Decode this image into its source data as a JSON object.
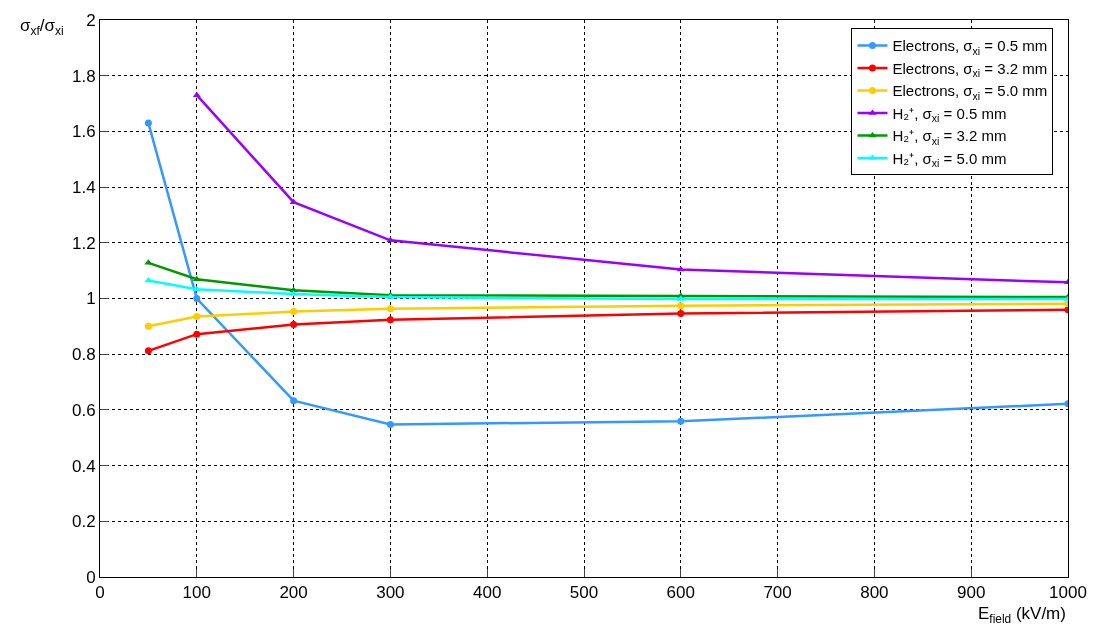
{
  "chart_data": {
    "type": "line",
    "xlabel": "E$_{field}$ (kV/m)",
    "ylabel": "σ$_{xf}$/σ$_{xi}$",
    "x": [
      50,
      100,
      200,
      300,
      600,
      1000
    ],
    "xlim": [
      0,
      1000
    ],
    "xticks": [
      0,
      100,
      200,
      300,
      400,
      500,
      600,
      700,
      800,
      900,
      1000
    ],
    "ylim": [
      0,
      2
    ],
    "yticks": [
      0,
      0.2,
      0.4,
      0.6,
      0.8,
      1,
      1.2,
      1.4,
      1.6,
      1.8,
      2
    ],
    "grid": true,
    "legend": "top right",
    "line_style": "solid",
    "series": [
      {
        "name": "Electrons, σ$_{xi}$ = 0.5 mm",
        "color": "#3399ff",
        "marker": "circle",
        "values": [
          1.63,
          1.0,
          0.633,
          0.548,
          0.559,
          0.622
        ]
      },
      {
        "name": "Electrons, σ$_{xi}$ = 3.2 mm",
        "color": "#ff0000",
        "marker": "circle",
        "values": [
          0.812,
          0.872,
          0.907,
          0.924,
          0.946,
          0.96
        ]
      },
      {
        "name": "Electrons, σ$_{xi}$ = 5.0 mm",
        "color": "#ffcc00",
        "marker": "circle",
        "values": [
          0.9,
          0.935,
          0.953,
          0.963,
          0.974,
          0.981
        ]
      },
      {
        "name": "H₂⁺, σ$_{xi}$ = 0.5 mm",
        "color": "#9900ff",
        "marker": "triangle",
        "values": [
          null,
          1.73,
          1.346,
          1.209,
          1.104,
          1.058
        ]
      },
      {
        "name": "H₂⁺, σ$_{xi}$ = 3.2 mm",
        "color": "#009900",
        "marker": "triangle",
        "values": [
          1.128,
          1.069,
          1.03,
          1.012,
          1.009,
          1.005
        ]
      },
      {
        "name": "H₂⁺, σ$_{xi}$ = 5.0 mm",
        "color": "#00ffff",
        "marker": "triangle",
        "values": [
          1.065,
          1.033,
          1.016,
          1.005,
          0.998,
          0.998
        ]
      }
    ]
  }
}
